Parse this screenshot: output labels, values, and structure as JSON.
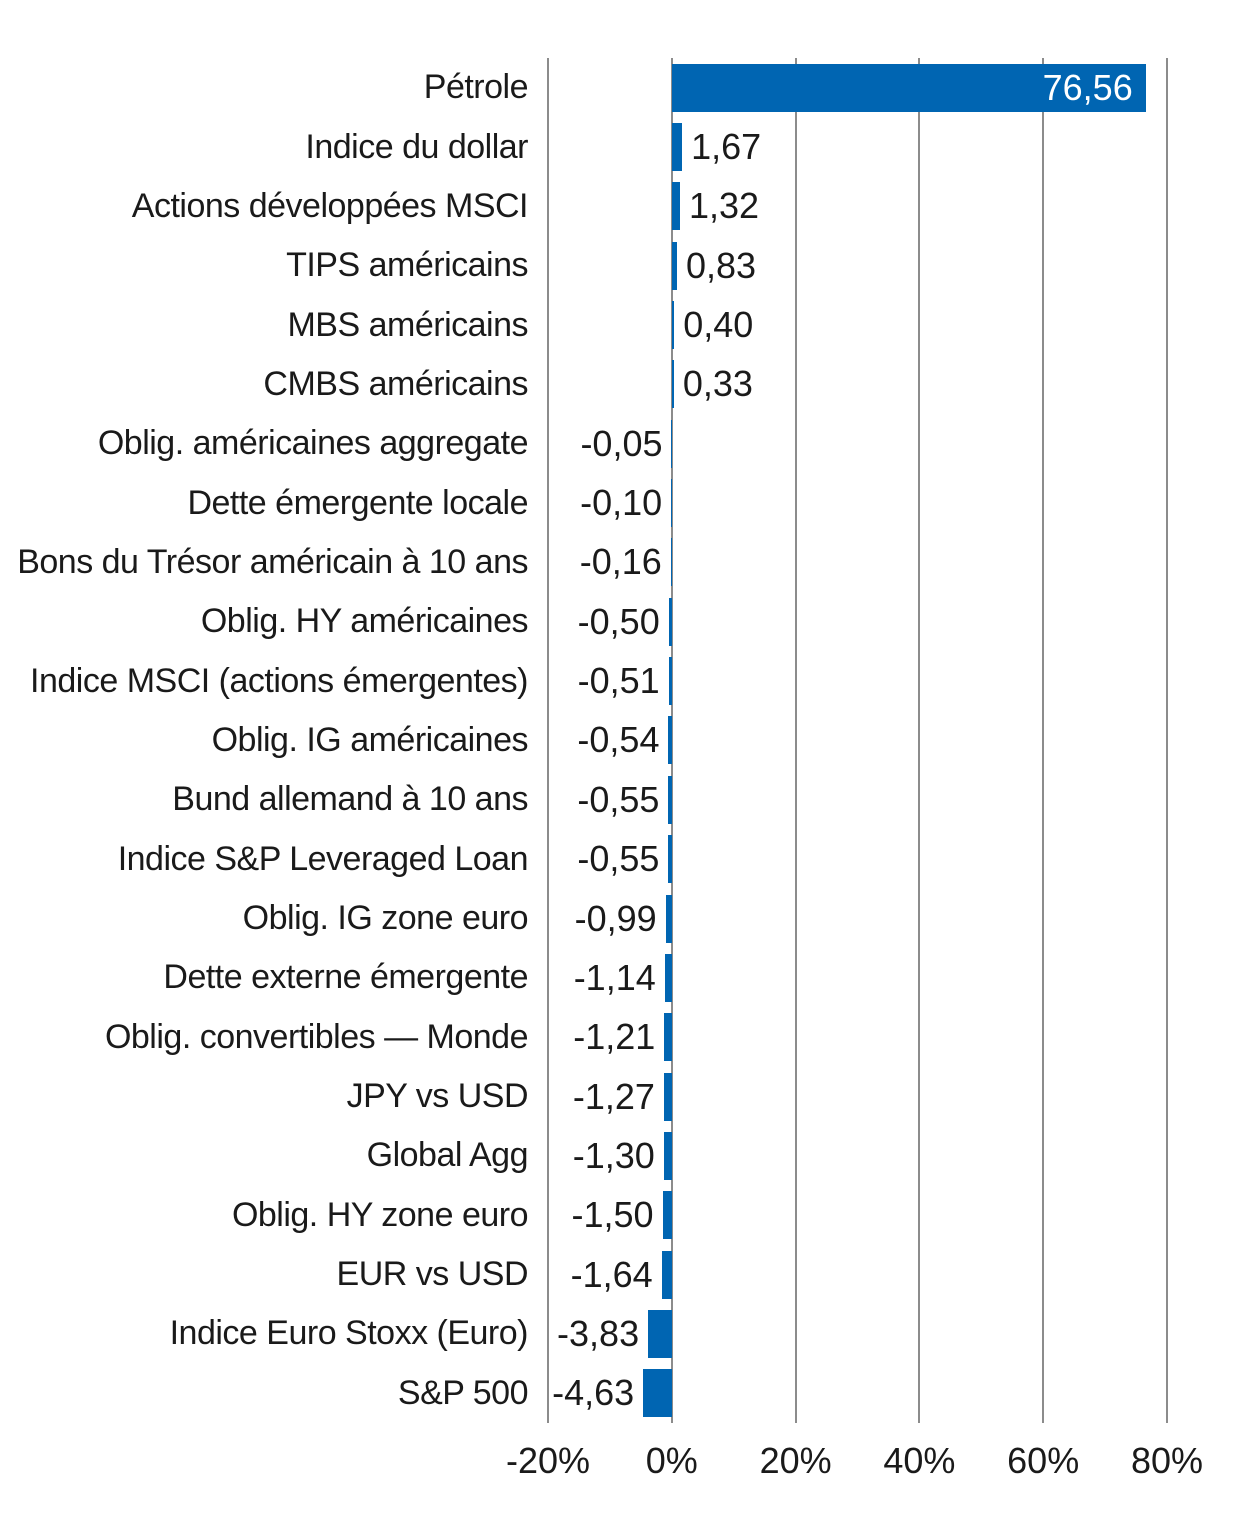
{
  "chart_data": {
    "type": "bar",
    "orientation": "horizontal",
    "title": "",
    "xlabel": "",
    "ylabel": "",
    "xlim": [
      -20,
      80
    ],
    "grid": "vertical-gridlines-on",
    "legend": "none",
    "categories": [
      "Pétrole",
      "Indice du dollar",
      "Actions développées MSCI",
      "TIPS américains",
      "MBS américains",
      "CMBS américains",
      "Oblig. américaines aggregate",
      "Dette émergente locale",
      "Bons du Trésor américain à 10 ans",
      "Oblig. HY américaines",
      "Indice MSCI (actions émergentes)",
      "Oblig. IG américaines",
      "Bund allemand à 10 ans",
      "Indice S&P Leveraged Loan",
      "Oblig. IG zone euro",
      "Dette externe émergente",
      "Oblig. convertibles — Monde",
      "JPY vs USD",
      "Global Agg",
      "Oblig. HY zone euro",
      "EUR vs USD",
      "Indice Euro Stoxx (Euro)",
      "S&P 500"
    ],
    "values": [
      76.56,
      1.67,
      1.32,
      0.83,
      0.4,
      0.33,
      -0.05,
      -0.1,
      -0.16,
      -0.5,
      -0.51,
      -0.54,
      -0.55,
      -0.55,
      -0.99,
      -1.14,
      -1.21,
      -1.27,
      -1.3,
      -1.5,
      -1.64,
      -3.83,
      -4.63
    ],
    "value_labels": [
      "76,56",
      "1,67",
      "1,32",
      "0,83",
      "0,40",
      "0,33",
      "-0,05",
      "-0,10",
      "-0,16",
      "-0,50",
      "-0,51",
      "-0,54",
      "-0,55",
      "-0,55",
      "-0,99",
      "-1,14",
      "-1,21",
      "-1,27",
      "-1,30",
      "-1,50",
      "-1,64",
      "-3,83",
      "-4,63"
    ],
    "x_ticks": [
      -20,
      0,
      20,
      40,
      60,
      80
    ],
    "x_tick_labels": [
      "-20%",
      "0%",
      "20%",
      "40%",
      "60%",
      "80%"
    ],
    "colors": {
      "bar": "#0065b2",
      "gridline": "#8c8c8c",
      "text": "#1a1a1a",
      "value_label_inside": "#ffffff"
    }
  }
}
